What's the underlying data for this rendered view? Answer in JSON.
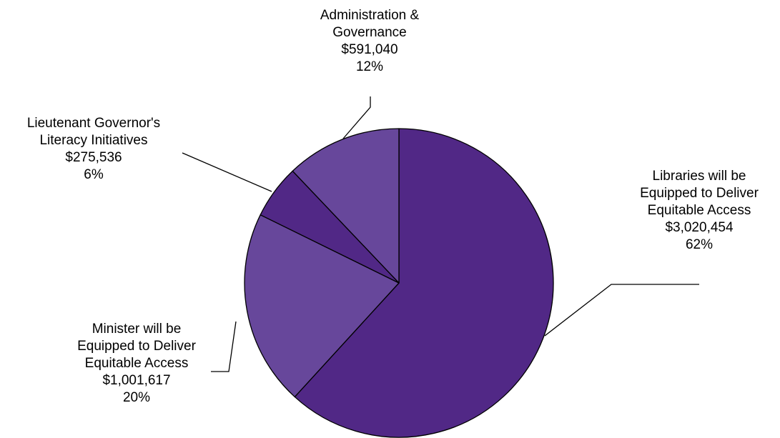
{
  "chart_data": {
    "type": "pie",
    "start_angle_deg": 0,
    "direction": "clockwise",
    "slices": [
      {
        "label_lines": [
          "Libraries will be",
          "Equipped to Deliver",
          "Equitable Access"
        ],
        "amount": "$3,020,454",
        "percent": "62%",
        "value": 3020454,
        "color": "#512886"
      },
      {
        "label_lines": [
          "Minister will be",
          "Equipped to Deliver",
          "Equitable Access"
        ],
        "amount": "$1,001,617",
        "percent": "20%",
        "value": 1001617,
        "color": "#67479b"
      },
      {
        "label_lines": [
          "Lieutenant Governor's",
          "Literacy Initiatives"
        ],
        "amount": "$275,536",
        "percent": "6%",
        "value": 275536,
        "color": "#512886"
      },
      {
        "label_lines": [
          "Administration &",
          "Governance"
        ],
        "amount": "$591,040",
        "percent": "12%",
        "value": 591040,
        "color": "#67479b"
      }
    ]
  }
}
